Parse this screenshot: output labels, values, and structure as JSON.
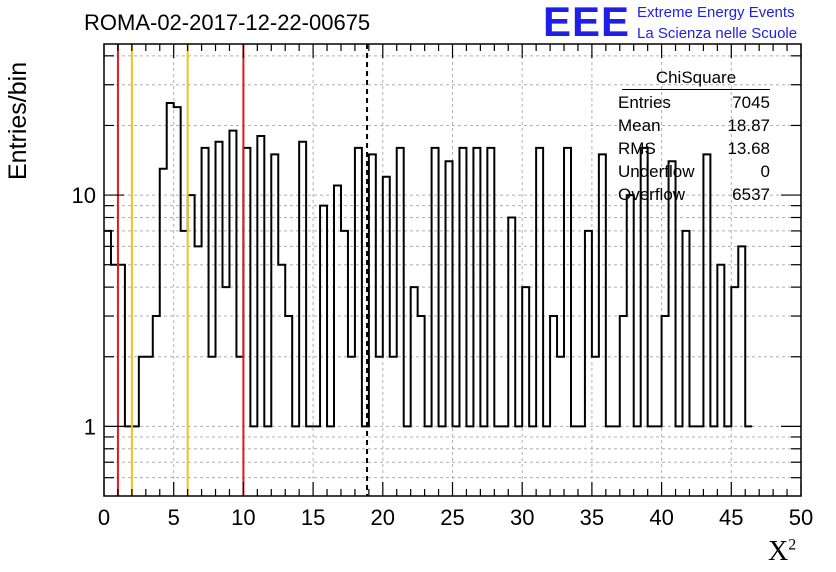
{
  "title": "ROMA-02-2017-12-22-00675",
  "logo": {
    "mark": "EEE",
    "line1": "Extreme Energy Events",
    "line2": "La Scienza nelle Scuole"
  },
  "stats": {
    "name": "ChiSquare",
    "rows": [
      {
        "label": "Entries",
        "value": "7045"
      },
      {
        "label": "Mean",
        "value": "18.87"
      },
      {
        "label": "RMS",
        "value": "13.68"
      },
      {
        "label": "Underflow",
        "value": "0"
      },
      {
        "label": "Overflow",
        "value": "6537"
      }
    ]
  },
  "chart_data": {
    "type": "bar",
    "subtype": "step-histogram",
    "xlabel": "X",
    "xlabel_superscript": "2",
    "ylabel": "Entries/bin",
    "xlim": [
      0,
      50
    ],
    "ylim": [
      0.5,
      45
    ],
    "y_scale": "log",
    "x_ticks": [
      "0",
      "5",
      "10",
      "15",
      "20",
      "25",
      "30",
      "35",
      "40",
      "45",
      "50"
    ],
    "y_ticks": [
      "1",
      "10"
    ],
    "grid": true,
    "bin_width": 0.5,
    "values": [
      7,
      5,
      5,
      1,
      1,
      2,
      2,
      3,
      13,
      25,
      24,
      7,
      10,
      6,
      16,
      2,
      17,
      4,
      19,
      2,
      16,
      1,
      18,
      1,
      15,
      5,
      3,
      1,
      17,
      1,
      1,
      9,
      1,
      11,
      7,
      2,
      16,
      1,
      15,
      2,
      12,
      2,
      16,
      1,
      4,
      3,
      1,
      16,
      1,
      14,
      1,
      16,
      1,
      16,
      1,
      16,
      1,
      1,
      8,
      1,
      4,
      1,
      16,
      1,
      3,
      2,
      16,
      1,
      1,
      7,
      2,
      15,
      1,
      1,
      3,
      10,
      1,
      16,
      1,
      1,
      3,
      14,
      1,
      7,
      1,
      1,
      15,
      1,
      5,
      1,
      4,
      6,
      1
    ],
    "vlines": [
      {
        "x": 1,
        "color": "#e01b1b",
        "style": "solid"
      },
      {
        "x": 2,
        "color": "#f2c01a",
        "style": "solid"
      },
      {
        "x": 6,
        "color": "#f2c01a",
        "style": "solid"
      },
      {
        "x": 10,
        "color": "#e01b1b",
        "style": "solid"
      },
      {
        "x": 18.87,
        "color": "#000000",
        "style": "dashed"
      }
    ],
    "line_color": "#000000",
    "grid_color": "#b0b0b0"
  }
}
